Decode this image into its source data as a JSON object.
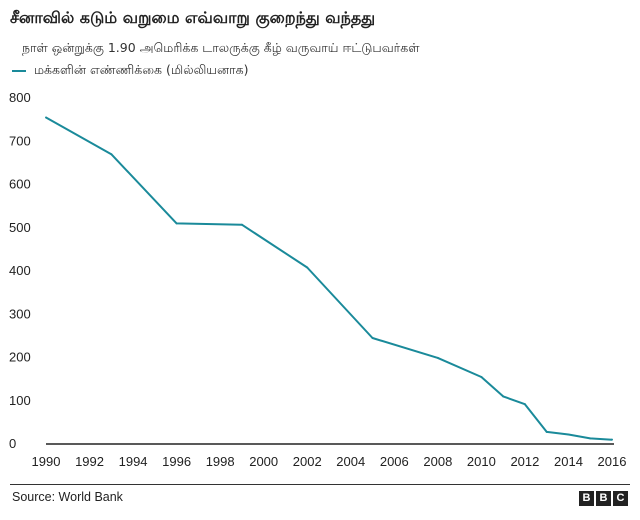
{
  "chart_data": {
    "type": "line",
    "title": "சீனாவில் கடும் வறுமை எவ்வாறு குறைந்து வந்தது",
    "subtitle": "நாள் ஒன்றுக்கு 1.90 அமெரிக்க டாலருக்கு கீழ் வருவாய் ஈட்டுபவர்கள்",
    "x": [
      1990,
      1993,
      1996,
      1999,
      2002,
      2005,
      2008,
      2010,
      2011,
      2012,
      2013,
      2014,
      2015,
      2016
    ],
    "series": [
      {
        "name": "மக்களின் எண்ணிக்கை (மில்லியனாக)",
        "values": [
          755,
          670,
          510,
          507,
          408,
          245,
          199,
          155,
          110,
          92,
          28,
          22,
          13,
          10
        ],
        "color": "#1a8a9a"
      }
    ],
    "xlim": [
      1990,
      2016
    ],
    "ylim": [
      0,
      800
    ],
    "x_ticks": [
      "1990",
      "1992",
      "1994",
      "1996",
      "1998",
      "2000",
      "2002",
      "2004",
      "2006",
      "2008",
      "2010",
      "2012",
      "2014",
      "2016"
    ],
    "y_ticks": [
      "0",
      "100",
      "200",
      "300",
      "400",
      "500",
      "600",
      "700",
      "800"
    ],
    "grid": false,
    "legend_position": "top-left",
    "source": "Source: World Bank",
    "logo": "BBC"
  }
}
